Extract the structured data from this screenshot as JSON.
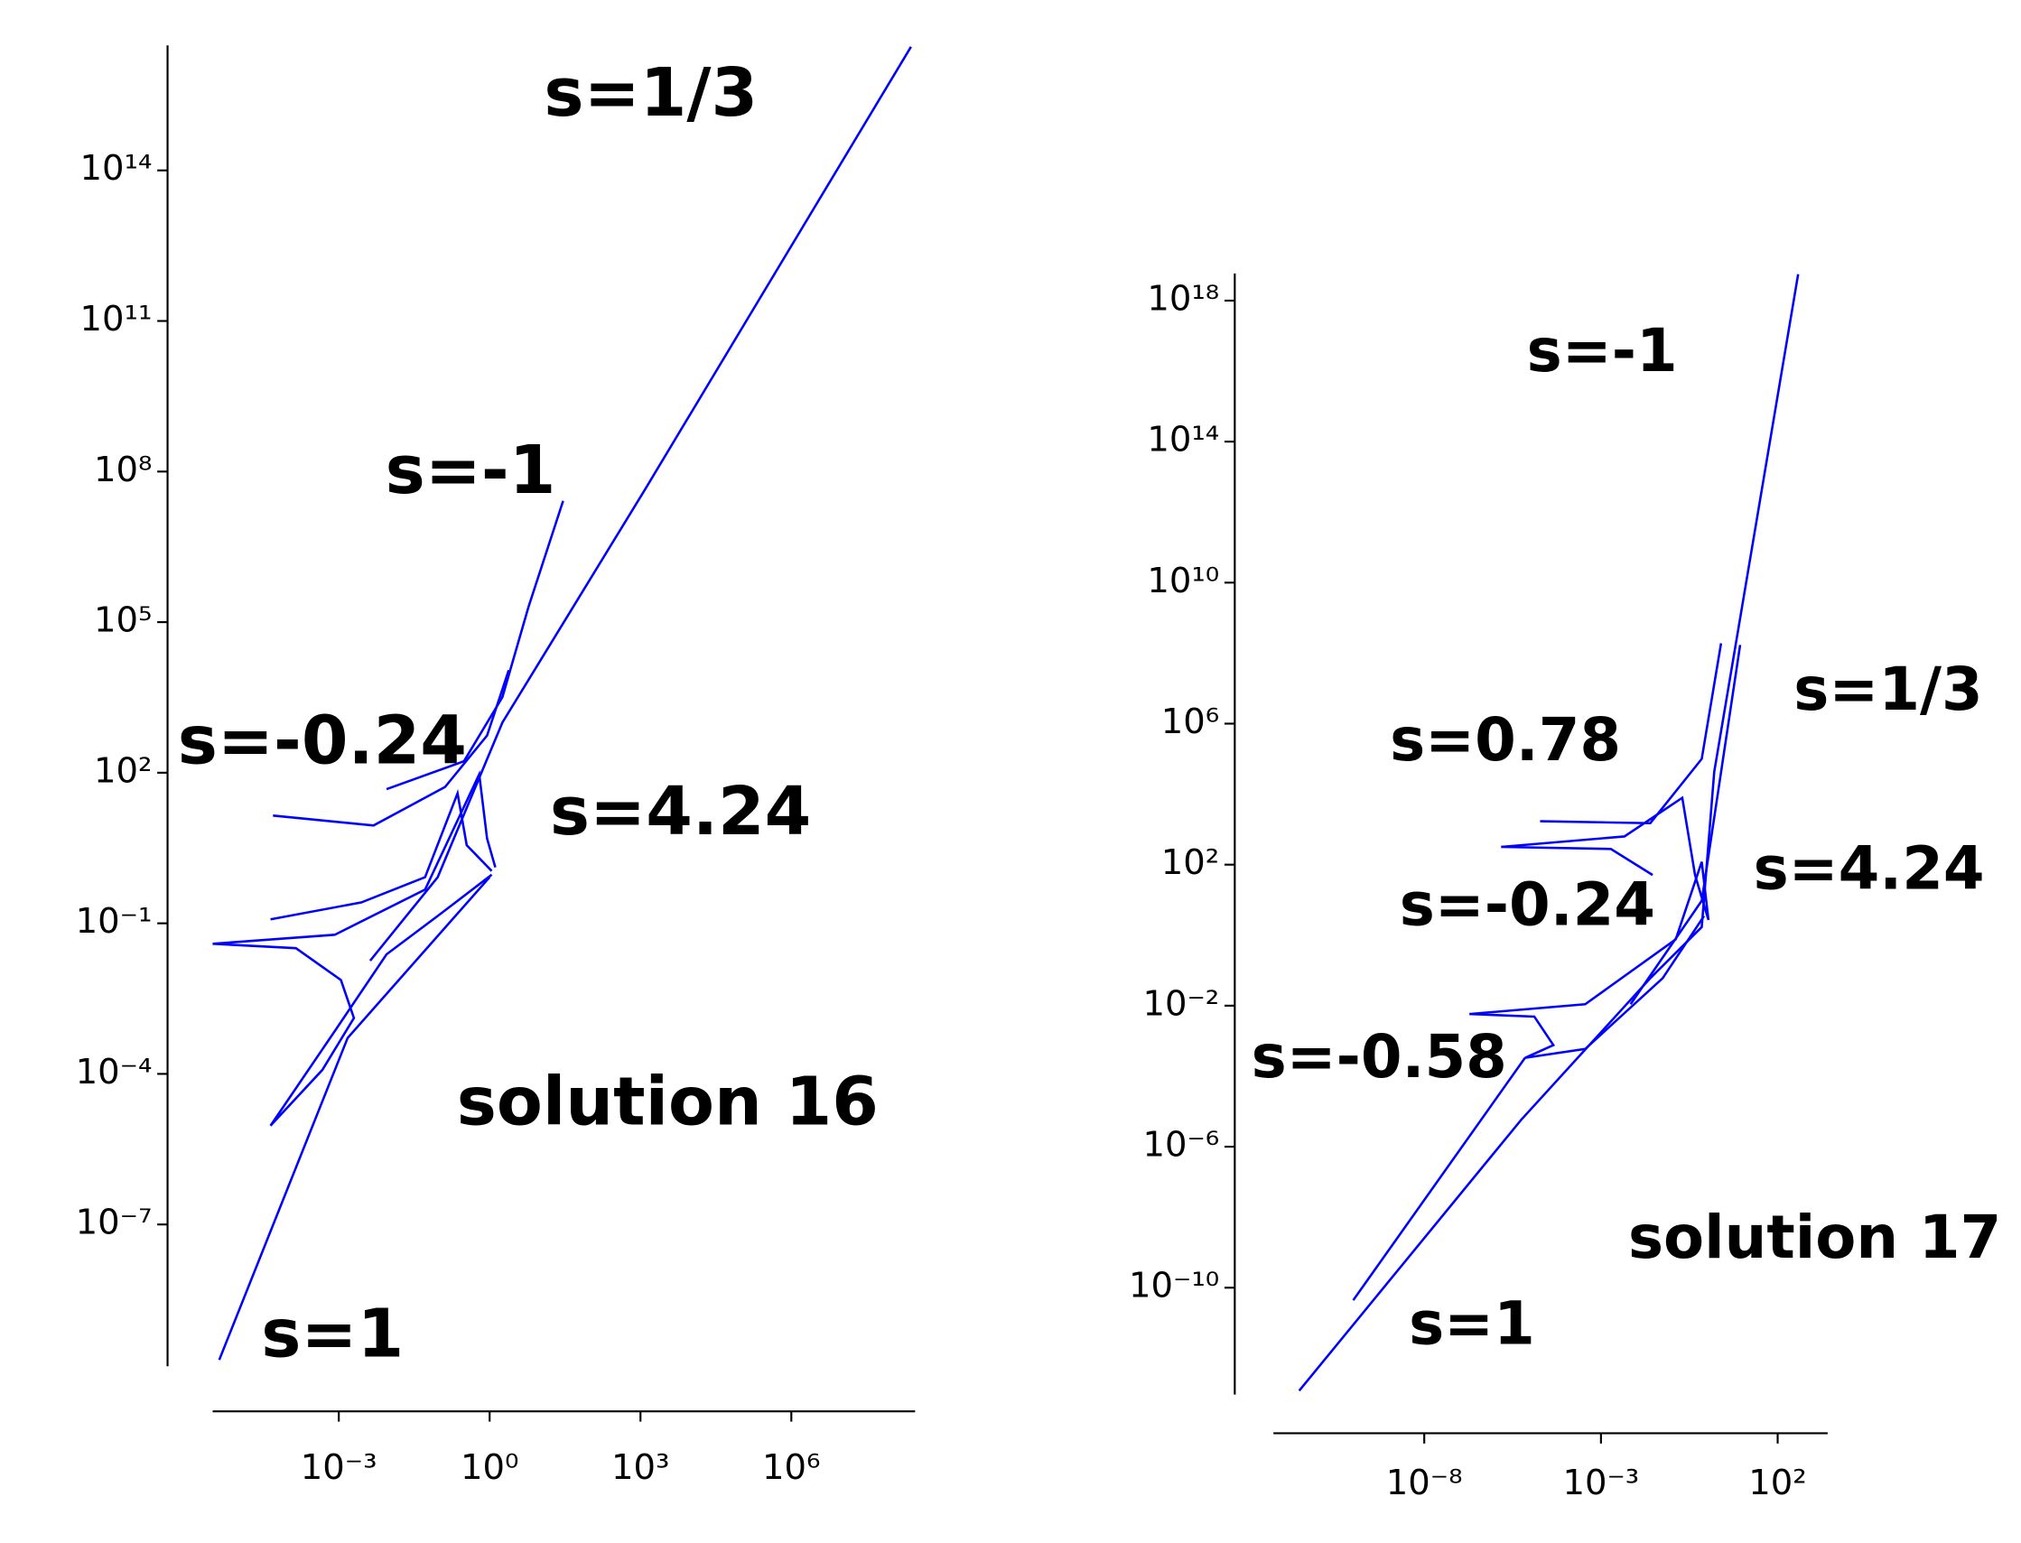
{
  "chart_data": [
    {
      "type": "line",
      "xscale": "log",
      "yscale": "log",
      "color": "#0000ff",
      "xlim": [
        3.1e-06,
        290000000.0
      ],
      "ylim": [
        1.5e-10,
        3.1e+16
      ],
      "xticks": [
        {
          "value": 0.001,
          "label": "10⁻³"
        },
        {
          "value": 1,
          "label": "10⁰"
        },
        {
          "value": 1000,
          "label": "10³"
        },
        {
          "value": 1000000,
          "label": "10⁶"
        }
      ],
      "yticks": [
        {
          "value": 1e-07,
          "label": "10⁻⁷"
        },
        {
          "value": 0.0001,
          "label": "10⁻⁴"
        },
        {
          "value": 0.1,
          "label": "10⁻¹"
        },
        {
          "value": 100,
          "label": "10²"
        },
        {
          "value": 100000,
          "label": "10⁵"
        },
        {
          "value": 100000000,
          "label": "10⁸"
        },
        {
          "value": 100000000000.0,
          "label": "10¹¹"
        },
        {
          "value": 100000000000000.0,
          "label": "10¹⁴"
        }
      ],
      "annotations": [
        "s=1/3",
        "s=-1",
        "s=-0.24",
        "s=4.24",
        "solution 16",
        "s=1"
      ],
      "series": [
        {
          "x": [
            4.2e-06,
            0.0015,
            1
          ],
          "values": [
            2e-10,
            0.00052,
            0.83
          ]
        },
        {
          "x": [
            0.0042,
            0.093,
            1.8,
            1200,
            240000000.0
          ],
          "values": [
            0.018,
            0.83,
            1000,
            42000000.0,
            2.9e+16
          ]
        },
        {
          "x": [
            0.0089,
            0.31,
            1.8,
            5.9,
            29
          ],
          "values": [
            47,
            170,
            3200,
            200000.0,
            26000000.0
          ]
        },
        {
          "x": [
            4.9e-05,
            0.0049,
            0.13,
            0.89,
            2.4
          ],
          "values": [
            14,
            8.9,
            52,
            550,
            11000.0
          ]
        },
        {
          "x": [
            4.4e-05,
            0.0028,
            0.052,
            0.23,
            0.35,
            1.1
          ],
          "values": [
            0.12,
            0.26,
            0.83,
            39,
            3.6,
            1.1
          ]
        },
        {
          "x": [
            3.1e-06,
            0.00014,
            0.0011,
            0.002,
            0.00047,
            4.4e-05
          ],
          "values": [
            0.039,
            0.032,
            0.0074,
            0.0013,
            0.00012,
            9.3e-06
          ]
        },
        {
          "x": [
            4.4e-05,
            0.00083,
            0.0089,
            0.093,
            1.1
          ],
          "values": [
            9.3e-06,
            0.00071,
            0.024,
            0.14,
            0.93
          ]
        },
        {
          "x": [
            3.1e-06,
            0.00083,
            0.052,
            0.62,
            0.89,
            1.3
          ],
          "values": [
            0.039,
            0.059,
            0.47,
            93,
            4.9,
            1.3
          ]
        }
      ]
    },
    {
      "type": "line",
      "xscale": "log",
      "yscale": "log",
      "color": "#0000ff",
      "xlim": [
        5.4e-13,
        2600
      ],
      "ylim": [
        9.3e-14,
        5.9e+18
      ],
      "xticks": [
        {
          "value": 1e-08,
          "label": "10⁻⁸"
        },
        {
          "value": 0.001,
          "label": "10⁻³"
        },
        {
          "value": 100,
          "label": "10²"
        }
      ],
      "yticks": [
        {
          "value": 1e-10,
          "label": "10⁻¹⁰"
        },
        {
          "value": 1e-06,
          "label": "10⁻⁶"
        },
        {
          "value": 0.01,
          "label": "10⁻²"
        },
        {
          "value": 100,
          "label": "10²"
        },
        {
          "value": 1000000,
          "label": "10⁶"
        },
        {
          "value": 10000000000,
          "label": "10¹⁰"
        },
        {
          "value": 100000000000000.0,
          "label": "10¹⁴"
        },
        {
          "value": 1e+18,
          "label": "10¹⁸"
        }
      ],
      "annotations": [
        "s=-1",
        "s=1/3",
        "s=0.78",
        "s=4.24",
        "s=-0.24",
        "s=-0.58",
        "solution 17",
        "s=1"
      ],
      "series": [
        {
          "x": [
            2.9e-12,
            5.5e-06,
            0.025,
            0.71,
            1.6,
            380
          ],
          "values": [
            1.2e-13,
            5.8e-06,
            0.06,
            1.7,
            43000.0,
            5.6e+18
          ]
        },
        {
          "x": [
            0.0069,
            0.71,
            8.7
          ],
          "values": [
            0.011,
            9.5,
            170000000.0
          ]
        },
        {
          "x": [
            1.9e-05,
            0.025,
            0.71,
            2.5
          ],
          "values": [
            1700,
            1500,
            100000.0,
            190000000.0
          ]
        },
        {
          "x": [
            1.5e-06,
            0.0019,
            0.029
          ],
          "values": [
            320,
            280,
            51
          ]
        },
        {
          "x": [
            1.5e-06,
            0.0046,
            0.2,
            0.46,
            1.1
          ],
          "values": [
            320,
            630,
            7900,
            51,
            2.7
          ]
        },
        {
          "x": [
            1.9e-07,
            1.3e-05,
            4.5e-05,
            7.1e-06
          ],
          "values": [
            0.0058,
            0.0049,
            0.00076,
            0.00033
          ]
        },
        {
          "x": [
            7.1e-06,
            0.00036,
            0.056,
            0.83
          ],
          "values": [
            0.00033,
            0.00059,
            0.06,
            3.5
          ]
        },
        {
          "x": [
            1.9e-07,
            0.00036,
            0.13,
            0.71,
            1.1
          ],
          "values": [
            0.0058,
            0.011,
            0.76,
            120,
            2.7
          ]
        },
        {
          "x": [
            9.8e-11,
            7.1e-06
          ],
          "values": [
            4.4e-11,
            0.00033
          ]
        }
      ]
    }
  ]
}
